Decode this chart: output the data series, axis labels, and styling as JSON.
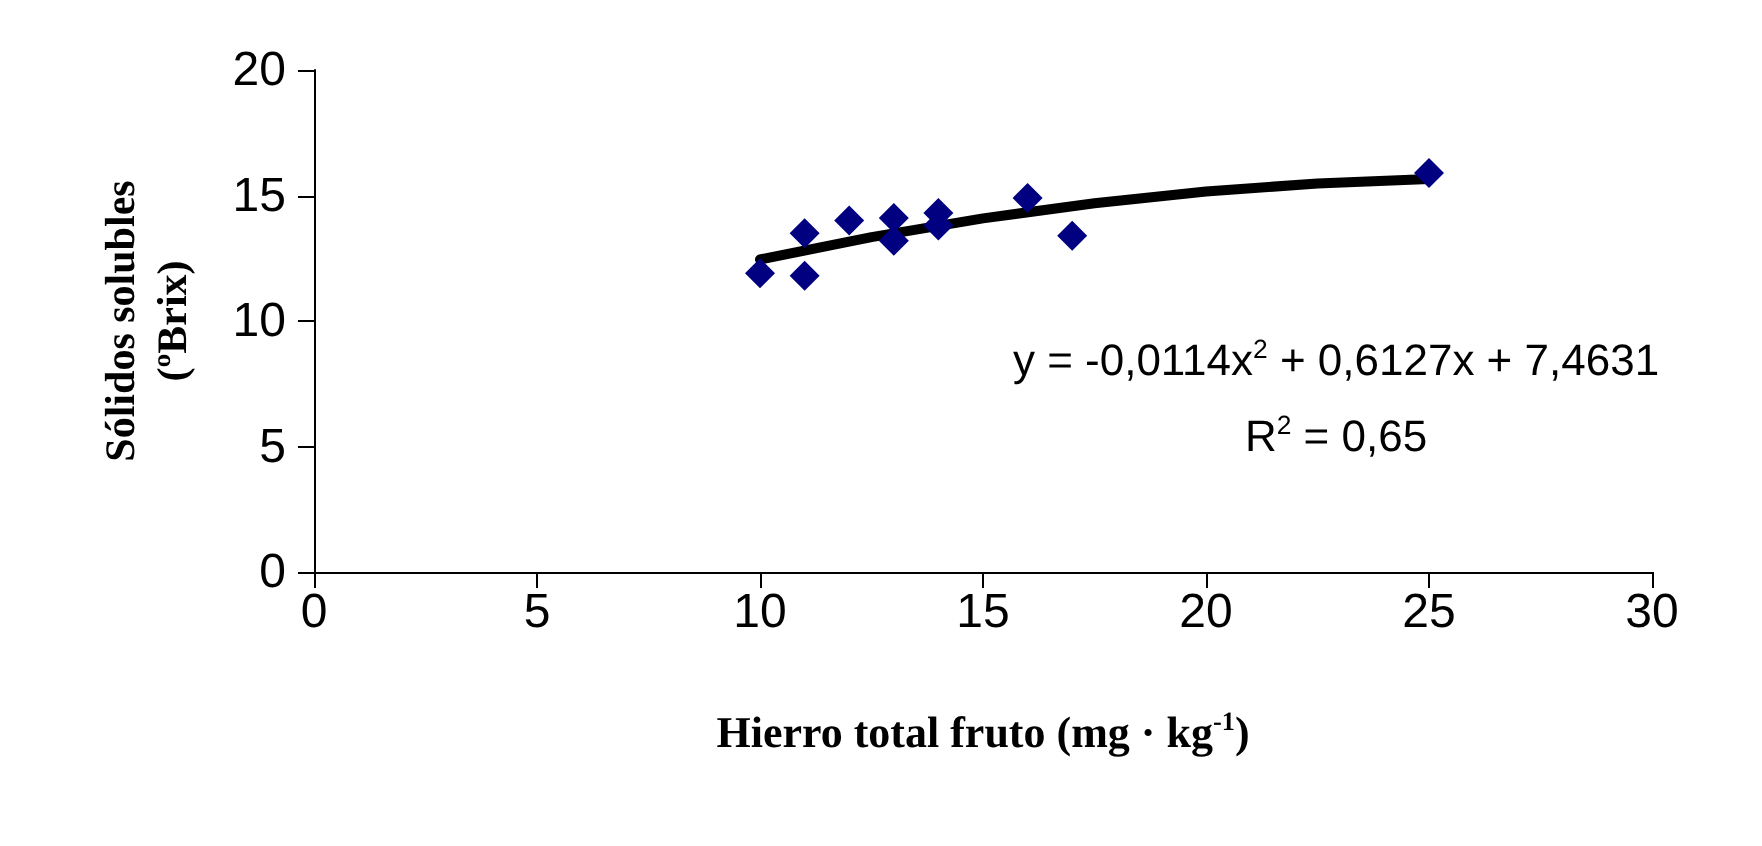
{
  "chart_data": {
    "type": "scatter",
    "xlabel": "Hierro total fruto (mg · kg$^{-1}$)",
    "ylabel": "Sólidos solubles\n(ºBrix)",
    "annotations": [
      "y = -0,0114x$^{2}$ + 0,6127x + 7,4631",
      "R$^{2}$ = 0,65"
    ],
    "x": [
      10,
      11,
      11,
      12,
      13,
      13,
      14,
      14,
      16,
      17,
      25
    ],
    "series": [
      {
        "color": "#000080",
        "marker": "diamond",
        "values": [
          11.9,
          13.5,
          11.8,
          14.0,
          14.1,
          13.2,
          14.3,
          13.8,
          14.9,
          13.4,
          15.9
        ]
      },
      {
        "type": "line",
        "color": "#000000",
        "marker": "none",
        "line_style": "solid",
        "x": [
          10,
          12.5,
          15,
          17.5,
          20,
          22.5,
          25
        ],
        "values": [
          12.45,
          13.34,
          14.09,
          14.69,
          15.16,
          15.48,
          15.66
        ]
      }
    ],
    "xlim": [
      0,
      30
    ],
    "xticks": [
      0,
      5,
      10,
      15,
      20,
      25,
      30
    ],
    "ylim": [
      0,
      20
    ],
    "yticks": [
      0,
      5,
      10,
      15,
      20
    ],
    "grid": false
  }
}
